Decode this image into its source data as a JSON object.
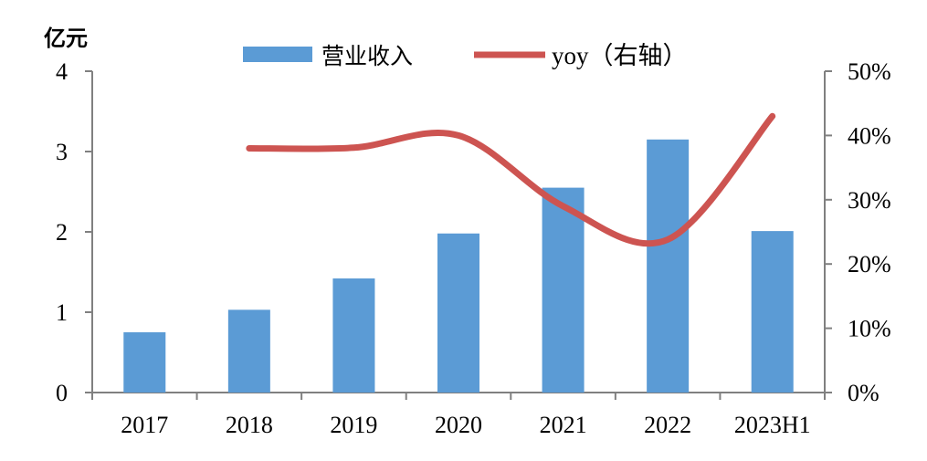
{
  "chart_data": {
    "type": "bar",
    "categories": [
      "2017",
      "2018",
      "2019",
      "2020",
      "2021",
      "2022",
      "2023H1"
    ],
    "y_unit_label": "亿元",
    "ylim": [
      0,
      4
    ],
    "yticks": [
      "0",
      "1",
      "2",
      "3",
      "4"
    ],
    "ylim_right": [
      0,
      50
    ],
    "yticks_right": [
      "0%",
      "10%",
      "20%",
      "30%",
      "40%",
      "50%"
    ],
    "grid": false,
    "legend_position": "top-center",
    "series": [
      {
        "name": "营业收入",
        "type": "bar",
        "axis": "left",
        "color": "#5B9BD5",
        "values": [
          0.75,
          1.03,
          1.42,
          1.98,
          2.55,
          3.15,
          2.01
        ]
      },
      {
        "name": "yoy（右轴）",
        "type": "line",
        "axis": "right",
        "color": "#CD5451",
        "values": [
          null,
          38.0,
          38.1,
          40.0,
          29.0,
          23.8,
          43.0
        ]
      }
    ]
  }
}
